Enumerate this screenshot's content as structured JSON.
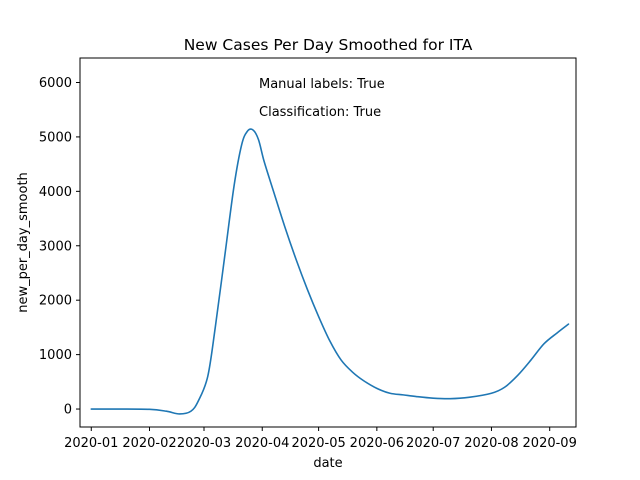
{
  "chart_data": {
    "type": "line",
    "title": "New Cases Per Day Smoothed for ITA",
    "xlabel": "date",
    "ylabel": "new_per_day_smooth",
    "xlim": [
      "2019-12-26",
      "2020-09-15"
    ],
    "ylim": [
      -330,
      6450
    ],
    "x_ticks": [
      "2020-01-01",
      "2020-02-01",
      "2020-03-01",
      "2020-04-01",
      "2020-05-01",
      "2020-06-01",
      "2020-07-01",
      "2020-08-01",
      "2020-09-01"
    ],
    "x_tick_labels": [
      "2020-01",
      "2020-02",
      "2020-03",
      "2020-04",
      "2020-05",
      "2020-06",
      "2020-07",
      "2020-08",
      "2020-09"
    ],
    "y_ticks": [
      0,
      1000,
      2000,
      3000,
      4000,
      5000,
      6000
    ],
    "y_tick_labels": [
      "0",
      "1000",
      "2000",
      "3000",
      "4000",
      "5000",
      "6000"
    ],
    "grid": false,
    "annotations": [
      "Manual labels: True",
      "Classification: True"
    ],
    "series": [
      {
        "color": "#1f77b4",
        "x": [
          "2020-01-01",
          "2020-01-15",
          "2020-02-01",
          "2020-02-10",
          "2020-02-17",
          "2020-02-23",
          "2020-02-27",
          "2020-03-03",
          "2020-03-07",
          "2020-03-12",
          "2020-03-17",
          "2020-03-21",
          "2020-03-24",
          "2020-03-27",
          "2020-03-30",
          "2020-04-02",
          "2020-04-07",
          "2020-04-13",
          "2020-04-19",
          "2020-04-25",
          "2020-05-01",
          "2020-05-07",
          "2020-05-13",
          "2020-05-19",
          "2020-05-25",
          "2020-06-01",
          "2020-06-08",
          "2020-06-15",
          "2020-06-22",
          "2020-07-01",
          "2020-07-10",
          "2020-07-20",
          "2020-08-01",
          "2020-08-08",
          "2020-08-15",
          "2020-08-22",
          "2020-08-29",
          "2020-09-05",
          "2020-09-11"
        ],
        "y": [
          0,
          0,
          -5,
          -40,
          -90,
          -40,
          150,
          600,
          1500,
          2800,
          4100,
          4850,
          5100,
          5130,
          4950,
          4550,
          4000,
          3350,
          2750,
          2200,
          1700,
          1250,
          900,
          680,
          520,
          380,
          290,
          260,
          230,
          200,
          190,
          215,
          290,
          400,
          620,
          900,
          1200,
          1400,
          1560
        ]
      }
    ]
  }
}
